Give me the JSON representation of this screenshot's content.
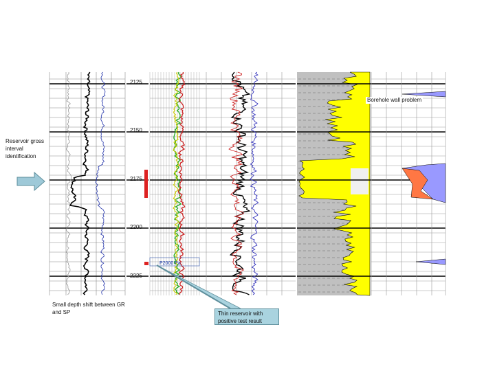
{
  "annotations": {
    "reservoir_gross": "Reservoir gross interval identification",
    "depth_shift": "Small depth shift between GR and SP",
    "thin_reservoir": "Thin reservoir with positive test result",
    "borehole": "Borehole wall problem",
    "test_label": "P2000 Pa"
  },
  "depth_labels": [
    "2125",
    "2150",
    "2175",
    "2200",
    "2225"
  ],
  "colors": {
    "sand": "#ffff00",
    "shale": "#c0c0c0",
    "blue_fill": "#9999ff",
    "orange_fill": "#ff7744",
    "marker": "#dd2222",
    "callout": "#a9d3df",
    "arrow": "#9ec9d8"
  },
  "icons": [
    "right-arrow-icon",
    "depth-marker-icon"
  ]
}
